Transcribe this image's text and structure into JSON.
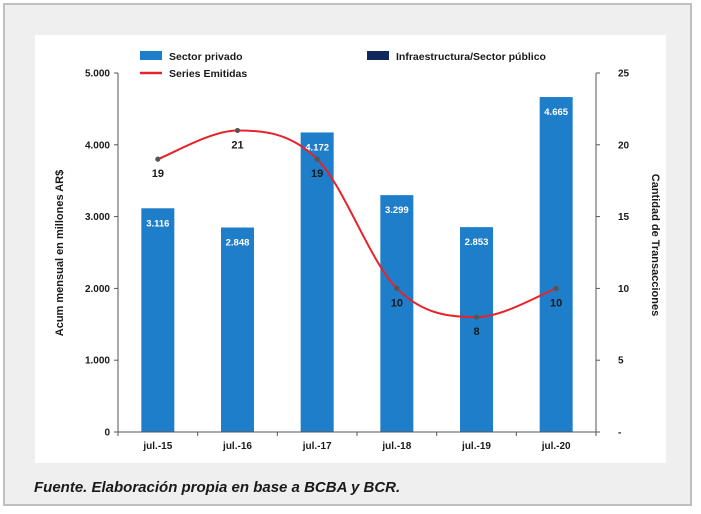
{
  "caption": "Fuente. Elaboración propia en base a BCBA y BCR.",
  "colors": {
    "bar": "#1f7ec9",
    "line": "#e8222a",
    "marker": "#555555",
    "public": "#0f2a5a",
    "axis": "#555555"
  },
  "chart_data": {
    "type": "bar",
    "categories": [
      "jul.-15",
      "jul.-16",
      "jul.-17",
      "jul.-18",
      "jul.-19",
      "jul.-20"
    ],
    "series": [
      {
        "name": "Sector privado",
        "type": "bar",
        "axis": "left",
        "values": [
          3116,
          2848,
          4172,
          3299,
          2853,
          4665
        ],
        "labels": [
          "3.116",
          "2.848",
          "4.172",
          "3.299",
          "2.853",
          "4.665"
        ]
      },
      {
        "name": "Infraestructura/Sector público",
        "type": "bar",
        "axis": "left",
        "values": [
          0,
          0,
          0,
          0,
          0,
          0
        ]
      },
      {
        "name": "Series Emitidas",
        "type": "line",
        "axis": "right",
        "smooth": true,
        "values": [
          19,
          21,
          19,
          10,
          8,
          10
        ],
        "labels": [
          "19",
          "21",
          "19",
          "10",
          "8",
          "10"
        ]
      }
    ],
    "ylabel": "Acum mensual en millones AR$",
    "y2label": "Cantidad de Transacciones",
    "ylim": [
      0,
      5000
    ],
    "y2lim": [
      0,
      25
    ],
    "yticks": [
      0,
      1000,
      2000,
      3000,
      4000,
      5000
    ],
    "ytick_labels": [
      "0",
      "1.000",
      "2.000",
      "3.000",
      "4.000",
      "5.000"
    ],
    "y2ticks": [
      0,
      5,
      10,
      15,
      20,
      25
    ],
    "y2tick_labels": [
      "-",
      "5",
      "10",
      "15",
      "20",
      "25"
    ],
    "legend_position": "top",
    "grid": false
  }
}
